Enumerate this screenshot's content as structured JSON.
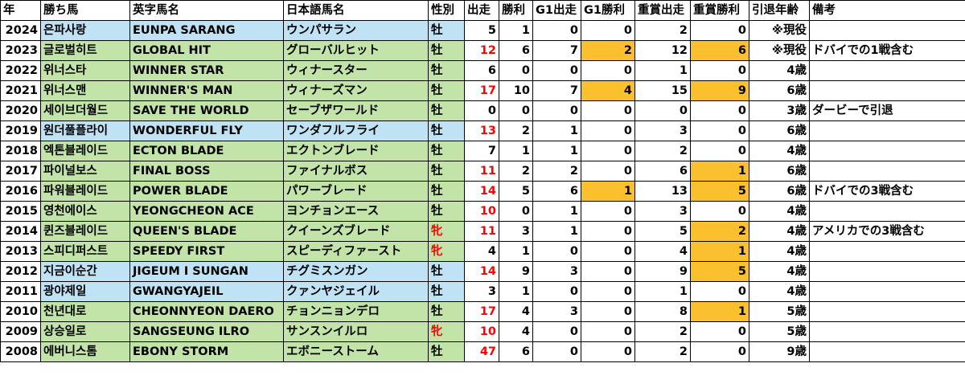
{
  "headers": [
    "年",
    "勝ち馬",
    "英字馬名",
    "日本語馬名",
    "性別",
    "出走",
    "勝利",
    "G1出走",
    "G1勝利",
    "重賞出走",
    "重賞勝利",
    "引退年齢",
    "備考"
  ],
  "colors": {
    "blue": "#bfe3f4",
    "green": "#c2e4a8",
    "orange": "#fbc02d",
    "red": "#ff0000"
  },
  "rows": [
    {
      "year": "2024",
      "kr": "은파사랑",
      "en": "EUNPA SARANG",
      "jp": "ウンパサラン",
      "sex": "牡",
      "starts": "5",
      "wins": "1",
      "g1s": "0",
      "g1w": "0",
      "gs": "2",
      "gw": "0",
      "age": "※現役",
      "note": "",
      "bg": "blue",
      "sex_red": false,
      "starts_red": false,
      "g1w_hi": false,
      "gw_hi": false
    },
    {
      "year": "2023",
      "kr": "글로벌히트",
      "en": "GLOBAL HIT",
      "jp": "グローバルヒット",
      "sex": "牡",
      "starts": "12",
      "wins": "6",
      "g1s": "7",
      "g1w": "2",
      "gs": "12",
      "gw": "6",
      "age": "※現役",
      "note": "ドバイでの1戦含む",
      "bg": "green",
      "sex_red": false,
      "starts_red": true,
      "g1w_hi": true,
      "gw_hi": true
    },
    {
      "year": "2022",
      "kr": "위너스타",
      "en": "WINNER STAR",
      "jp": "ウィナースター",
      "sex": "牡",
      "starts": "6",
      "wins": "0",
      "g1s": "0",
      "g1w": "0",
      "gs": "1",
      "gw": "0",
      "age": "4歳",
      "note": "",
      "bg": "green",
      "sex_red": false,
      "starts_red": false,
      "g1w_hi": false,
      "gw_hi": false
    },
    {
      "year": "2021",
      "kr": "위너스맨",
      "en": "WINNER'S MAN",
      "jp": "ウィナーズマン",
      "sex": "牡",
      "starts": "17",
      "wins": "10",
      "g1s": "7",
      "g1w": "4",
      "gs": "15",
      "gw": "9",
      "age": "6歳",
      "note": "",
      "bg": "green",
      "sex_red": false,
      "starts_red": true,
      "g1w_hi": true,
      "gw_hi": true
    },
    {
      "year": "2020",
      "kr": "세이브더월드",
      "en": "SAVE THE WORLD",
      "jp": "セーブザワールド",
      "sex": "牡",
      "starts": "0",
      "wins": "0",
      "g1s": "0",
      "g1w": "0",
      "gs": "0",
      "gw": "0",
      "age": "3歳",
      "note": "ダービーで引退",
      "bg": "green",
      "sex_red": false,
      "starts_red": false,
      "g1w_hi": false,
      "gw_hi": false
    },
    {
      "year": "2019",
      "kr": "원더풀플라이",
      "en": "WONDERFUL FLY",
      "jp": "ワンダフルフライ",
      "sex": "牡",
      "starts": "13",
      "wins": "2",
      "g1s": "1",
      "g1w": "0",
      "gs": "3",
      "gw": "0",
      "age": "6歳",
      "note": "",
      "bg": "blue",
      "sex_red": false,
      "starts_red": true,
      "g1w_hi": false,
      "gw_hi": false
    },
    {
      "year": "2018",
      "kr": "엑톤블레이드",
      "en": "ECTON BLADE",
      "jp": "エクトンブレード",
      "sex": "牡",
      "starts": "7",
      "wins": "1",
      "g1s": "1",
      "g1w": "0",
      "gs": "2",
      "gw": "0",
      "age": "4歳",
      "note": "",
      "bg": "green",
      "sex_red": false,
      "starts_red": false,
      "g1w_hi": false,
      "gw_hi": false
    },
    {
      "year": "2017",
      "kr": "파이널보스",
      "en": "FINAL BOSS",
      "jp": "ファイナルボス",
      "sex": "牡",
      "starts": "11",
      "wins": "2",
      "g1s": "2",
      "g1w": "0",
      "gs": "6",
      "gw": "1",
      "age": "6歳",
      "note": "",
      "bg": "green",
      "sex_red": false,
      "starts_red": true,
      "g1w_hi": false,
      "gw_hi": true
    },
    {
      "year": "2016",
      "kr": "파워블레이드",
      "en": "POWER BLADE",
      "jp": "パワーブレード",
      "sex": "牡",
      "starts": "14",
      "wins": "5",
      "g1s": "6",
      "g1w": "1",
      "gs": "13",
      "gw": "5",
      "age": "6歳",
      "note": "ドバイでの3戦含む",
      "bg": "green",
      "sex_red": false,
      "starts_red": true,
      "g1w_hi": true,
      "gw_hi": true
    },
    {
      "year": "2015",
      "kr": "영천에이스",
      "en": "YEONGCHEON ACE",
      "jp": "ヨンチョンエース",
      "sex": "牡",
      "starts": "10",
      "wins": "0",
      "g1s": "1",
      "g1w": "0",
      "gs": "3",
      "gw": "0",
      "age": "4歳",
      "note": "",
      "bg": "green",
      "sex_red": false,
      "starts_red": true,
      "g1w_hi": false,
      "gw_hi": false
    },
    {
      "year": "2014",
      "kr": "퀸즈블레이드",
      "en": "QUEEN'S BLADE",
      "jp": "クイーンズブレード",
      "sex": "牝",
      "starts": "11",
      "wins": "3",
      "g1s": "1",
      "g1w": "0",
      "gs": "5",
      "gw": "2",
      "age": "4歳",
      "note": "アメリカでの3戦含む",
      "bg": "green",
      "sex_red": true,
      "starts_red": true,
      "g1w_hi": false,
      "gw_hi": true
    },
    {
      "year": "2013",
      "kr": "스피디퍼스트",
      "en": "SPEEDY FIRST",
      "jp": "スピーディファースト",
      "sex": "牝",
      "starts": "4",
      "wins": "1",
      "g1s": "0",
      "g1w": "0",
      "gs": "4",
      "gw": "1",
      "age": "4歳",
      "note": "",
      "bg": "green",
      "sex_red": true,
      "starts_red": false,
      "g1w_hi": false,
      "gw_hi": true
    },
    {
      "year": "2012",
      "kr": "지금이순간",
      "en": "JIGEUM I SUNGAN",
      "jp": "チグミスンガン",
      "sex": "牡",
      "starts": "14",
      "wins": "9",
      "g1s": "3",
      "g1w": "0",
      "gs": "9",
      "gw": "5",
      "age": "4歳",
      "note": "",
      "bg": "blue",
      "sex_red": false,
      "starts_red": true,
      "g1w_hi": false,
      "gw_hi": true
    },
    {
      "year": "2011",
      "kr": "광야제일",
      "en": "GWANGYAJEIL",
      "jp": "クァンヤジェイル",
      "sex": "牡",
      "starts": "3",
      "wins": "1",
      "g1s": "0",
      "g1w": "0",
      "gs": "1",
      "gw": "0",
      "age": "4歳",
      "note": "",
      "bg": "blue",
      "sex_red": false,
      "starts_red": false,
      "g1w_hi": false,
      "gw_hi": false
    },
    {
      "year": "2010",
      "kr": "천년대로",
      "en": "CHEONNYEON DAERO",
      "jp": "チョンニョンデロ",
      "sex": "牡",
      "starts": "17",
      "wins": "4",
      "g1s": "3",
      "g1w": "0",
      "gs": "8",
      "gw": "1",
      "age": "5歳",
      "note": "",
      "bg": "green",
      "sex_red": false,
      "starts_red": true,
      "g1w_hi": false,
      "gw_hi": true
    },
    {
      "year": "2009",
      "kr": "상승일로",
      "en": "SANGSEUNG ILRO",
      "jp": "サンスンイルロ",
      "sex": "牝",
      "starts": "10",
      "wins": "4",
      "g1s": "0",
      "g1w": "0",
      "gs": "2",
      "gw": "0",
      "age": "5歳",
      "note": "",
      "bg": "green",
      "sex_red": true,
      "starts_red": true,
      "g1w_hi": false,
      "gw_hi": false
    },
    {
      "year": "2008",
      "kr": "에버니스톰",
      "en": "EBONY STORM",
      "jp": "エボニーストーム",
      "sex": "牡",
      "starts": "47",
      "wins": "6",
      "g1s": "0",
      "g1w": "0",
      "gs": "2",
      "gw": "0",
      "age": "9歳",
      "note": "",
      "bg": "green",
      "sex_red": false,
      "starts_red": true,
      "g1w_hi": false,
      "gw_hi": false
    }
  ]
}
